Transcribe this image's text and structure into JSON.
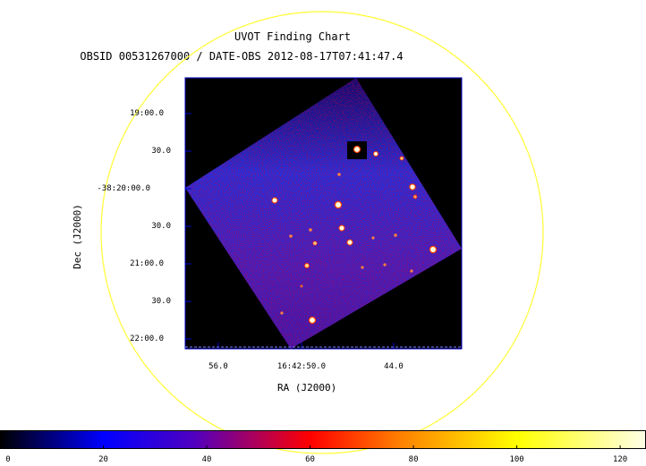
{
  "title": "UVOT Finding Chart",
  "subtitle": "OBSID 00531267000 / DATE-OBS 2012-08-17T07:41:47.4",
  "axes": {
    "xlabel": "RA (J2000)",
    "ylabel": "Dec (J2000)",
    "ra_ticks": [
      "56.0",
      "16:42:50.0",
      "44.0"
    ],
    "dec_ticks": [
      "19:00.0",
      "30.0",
      "-38:20:00.0",
      "30.0",
      "21:00.0",
      "30.0",
      "22:00.0"
    ]
  },
  "colorbar": {
    "ticks": [
      0,
      20,
      40,
      60,
      80,
      100,
      120
    ],
    "min": 0,
    "max": 125,
    "colors": [
      "#000000",
      "#0000ff",
      "#8000a0",
      "#ff0000",
      "#ffa500",
      "#ffff00",
      "#ffffe0"
    ]
  },
  "colors": {
    "circle": "#ffff33",
    "frame": "#0000cc"
  }
}
